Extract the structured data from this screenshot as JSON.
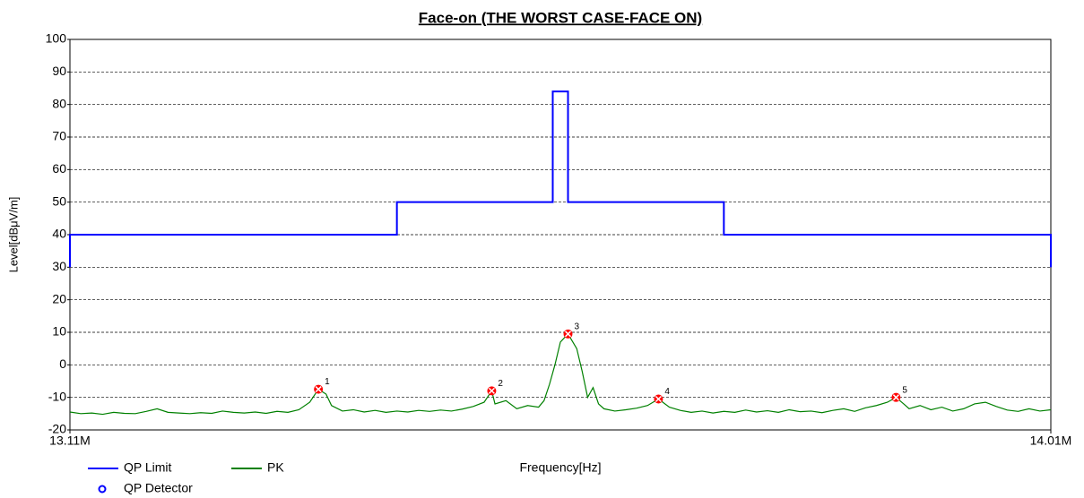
{
  "chart_data": {
    "type": "line",
    "title": "Face-on (THE WORST CASE-FACE ON)",
    "xlabel": "Frequency[Hz]",
    "ylabel": "Level[dBμV/m]",
    "xlim": [
      13.11,
      14.01
    ],
    "xticks": [
      {
        "value": 13.11,
        "label": "13.11M"
      },
      {
        "value": 14.01,
        "label": "14.01M"
      }
    ],
    "ylim": [
      -20,
      100
    ],
    "yticks": [
      -20,
      -10,
      0,
      10,
      20,
      30,
      40,
      50,
      60,
      70,
      80,
      90,
      100
    ],
    "grid": true,
    "legend": "bottom-left",
    "series": [
      {
        "name": "QP Limit",
        "type": "line",
        "color": "#0000ff",
        "x": [
          13.11,
          13.11,
          13.41,
          13.41,
          13.553,
          13.553,
          13.567,
          13.567,
          13.71,
          13.71,
          14.01,
          14.01
        ],
        "values": [
          30,
          40,
          40,
          50,
          50,
          84,
          84,
          50,
          50,
          40,
          40,
          30
        ]
      },
      {
        "name": "PK",
        "type": "line",
        "color": "#008000",
        "x": [
          13.11,
          13.12,
          13.13,
          13.14,
          13.15,
          13.16,
          13.17,
          13.18,
          13.19,
          13.2,
          13.21,
          13.22,
          13.23,
          13.24,
          13.25,
          13.26,
          13.27,
          13.28,
          13.29,
          13.3,
          13.31,
          13.32,
          13.33,
          13.338,
          13.345,
          13.35,
          13.36,
          13.37,
          13.38,
          13.39,
          13.4,
          13.41,
          13.42,
          13.43,
          13.44,
          13.45,
          13.46,
          13.47,
          13.48,
          13.49,
          13.497,
          13.5,
          13.51,
          13.52,
          13.53,
          13.54,
          13.545,
          13.55,
          13.555,
          13.56,
          13.567,
          13.575,
          13.58,
          13.585,
          13.59,
          13.595,
          13.6,
          13.61,
          13.62,
          13.63,
          13.64,
          13.65,
          13.66,
          13.67,
          13.68,
          13.69,
          13.7,
          13.71,
          13.72,
          13.73,
          13.74,
          13.75,
          13.76,
          13.77,
          13.78,
          13.79,
          13.8,
          13.81,
          13.82,
          13.83,
          13.84,
          13.85,
          13.86,
          13.868,
          13.875,
          13.88,
          13.89,
          13.9,
          13.91,
          13.92,
          13.93,
          13.94,
          13.95,
          13.96,
          13.97,
          13.98,
          13.99,
          14.0,
          14.01
        ],
        "values": [
          -14.5,
          -15,
          -14.8,
          -15.2,
          -14.6,
          -14.9,
          -15,
          -14.3,
          -13.5,
          -14.6,
          -14.8,
          -15,
          -14.7,
          -14.9,
          -14.2,
          -14.6,
          -14.8,
          -14.5,
          -14.9,
          -14.3,
          -14.6,
          -13.8,
          -11.5,
          -7.5,
          -9,
          -12.5,
          -14.2,
          -13.8,
          -14.5,
          -14,
          -14.6,
          -14.2,
          -14.5,
          -14,
          -14.3,
          -13.9,
          -14.2,
          -13.6,
          -12.8,
          -11.5,
          -8,
          -12,
          -11,
          -13.5,
          -12.5,
          -13,
          -11,
          -6,
          0,
          7,
          9.5,
          5,
          -2,
          -10,
          -7,
          -12,
          -13.5,
          -14.2,
          -13.8,
          -13.3,
          -12.5,
          -10.5,
          -13,
          -14,
          -14.6,
          -14.2,
          -14.8,
          -14.3,
          -14.6,
          -13.9,
          -14.5,
          -14.1,
          -14.6,
          -13.8,
          -14.4,
          -14.2,
          -14.7,
          -14,
          -13.5,
          -14.3,
          -13.2,
          -12.5,
          -11.5,
          -10,
          -12,
          -13.5,
          -12.5,
          -13.8,
          -13,
          -14.2,
          -13.5,
          -12,
          -11.5,
          -12.8,
          -13.9,
          -14.3,
          -13.5,
          -14.2,
          -13.8
        ]
      },
      {
        "name": "QP Detector",
        "type": "scatter",
        "color": "#ff0000",
        "legend_color": "#0000ff",
        "x": [
          13.338,
          13.497,
          13.567,
          13.65,
          13.868
        ],
        "values": [
          -7.5,
          -8,
          9.5,
          -10.5,
          -10
        ],
        "labels": [
          "1",
          "2",
          "3",
          "4",
          "5"
        ]
      }
    ]
  }
}
